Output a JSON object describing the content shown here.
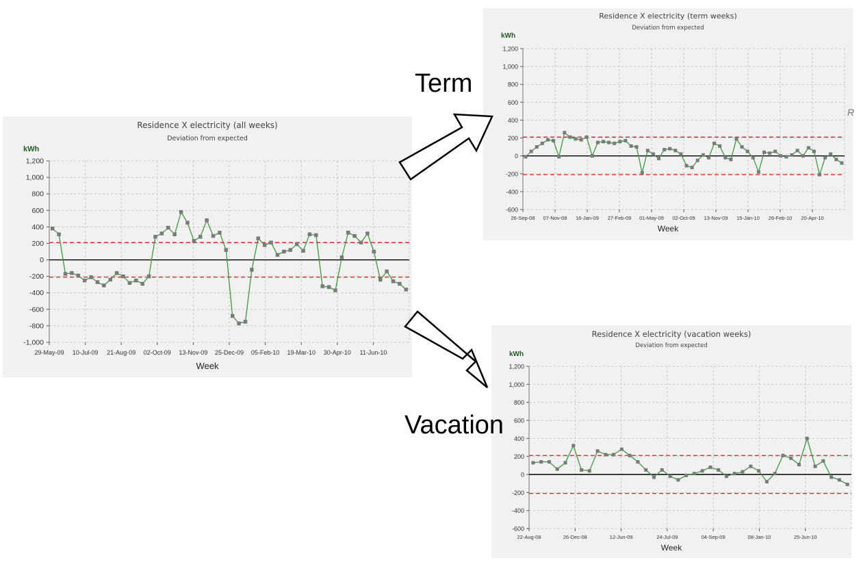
{
  "labels": {
    "term": "Term",
    "vacation": "Vacation",
    "edge_glyph": "R"
  },
  "colors": {
    "line": "#3a9a3a",
    "marker": "#7a7a7a",
    "limit": "#e03030",
    "zero": "#000000",
    "grid": "#c8c8c8",
    "unit": "#1f5b1f"
  },
  "chart_data": [
    {
      "id": "all",
      "type": "line",
      "title": "Residence X electricity (all weeks)",
      "subtitle": "Deviation from expected",
      "ylabel": "kWh",
      "xlabel": "Week",
      "ylim": [
        -1000,
        1200
      ],
      "yticks": [
        -1000,
        -800,
        -600,
        -400,
        -200,
        0,
        200,
        400,
        600,
        800,
        1000,
        1200
      ],
      "yticklabels": [
        "-1,000",
        "-800",
        "-600",
        "-400",
        "-200",
        "0",
        "200",
        "400",
        "600",
        "800",
        "1,000",
        "1,200"
      ],
      "xticklabels": [
        "29-May-09",
        "10-Jul-09",
        "21-Aug-09",
        "02-Oct-09",
        "13-Nov-09",
        "25-Dec-09",
        "05-Feb-10",
        "19-Mar-10",
        "30-Apr-10",
        "11-Jun-10"
      ],
      "upper_limit": 210,
      "lower_limit": -210,
      "grid": true,
      "values": [
        380,
        310,
        -170,
        -160,
        -190,
        -250,
        -210,
        -270,
        -310,
        -240,
        -160,
        -200,
        -280,
        -250,
        -290,
        -200,
        280,
        320,
        390,
        310,
        580,
        450,
        230,
        280,
        480,
        290,
        330,
        120,
        -680,
        -770,
        -750,
        -120,
        260,
        180,
        210,
        60,
        100,
        120,
        190,
        110,
        310,
        300,
        -320,
        -330,
        -370,
        30,
        330,
        290,
        210,
        320,
        100,
        -240,
        -140,
        -260,
        -290,
        -360
      ]
    },
    {
      "id": "term",
      "type": "line",
      "title": "Residence X electricity (term weeks)",
      "subtitle": "Deviation from expected",
      "ylabel": "kWh",
      "xlabel": "Week",
      "ylim": [
        -600,
        1200
      ],
      "yticks": [
        -600,
        -400,
        -200,
        0,
        200,
        400,
        600,
        800,
        1000,
        1200
      ],
      "yticklabels": [
        "-600",
        "-400",
        "-200",
        "0",
        "200",
        "400",
        "600",
        "800",
        "1,000",
        "1,200"
      ],
      "xticklabels": [
        "26-Sep-08",
        "07-Nov-08",
        "16-Jan-09",
        "27-Feb-09",
        "01-May-09",
        "02-Oct-09",
        "13-Nov-09",
        "15-Jan-10",
        "26-Feb-10",
        "20-Apr-10"
      ],
      "upper_limit": 210,
      "lower_limit": -210,
      "grid": true,
      "values": [
        -10,
        50,
        100,
        140,
        180,
        170,
        -10,
        260,
        210,
        190,
        180,
        210,
        0,
        150,
        160,
        150,
        140,
        160,
        170,
        110,
        100,
        -190,
        60,
        20,
        -30,
        70,
        80,
        60,
        20,
        -110,
        -130,
        -50,
        10,
        -20,
        140,
        110,
        -20,
        -40,
        190,
        100,
        50,
        -20,
        -180,
        40,
        30,
        50,
        0,
        -10,
        10,
        60,
        0,
        90,
        50,
        -210,
        -20,
        20,
        -40,
        -80
      ]
    },
    {
      "id": "vacation",
      "type": "line",
      "title": "Residence X electricity (vacation weeks)",
      "subtitle": "Deviation from expected",
      "ylabel": "kWh",
      "xlabel": "Week",
      "ylim": [
        -600,
        1200
      ],
      "yticks": [
        -600,
        -400,
        -200,
        0,
        200,
        400,
        600,
        800,
        1000,
        1200
      ],
      "yticklabels": [
        "-600",
        "-400",
        "-200",
        "0",
        "200",
        "400",
        "600",
        "800",
        "1,000",
        "1,200"
      ],
      "xticklabels": [
        "22-Aug-08",
        "26-Dec-08",
        "12-Jun-09",
        "24-Jul-09",
        "04-Sep-09",
        "08-Jan-10",
        "25-Jun-10"
      ],
      "upper_limit": 210,
      "lower_limit": -210,
      "grid": true,
      "values": [
        130,
        140,
        140,
        60,
        130,
        320,
        50,
        40,
        260,
        220,
        220,
        280,
        210,
        140,
        50,
        -30,
        50,
        -20,
        -60,
        -10,
        10,
        40,
        80,
        50,
        -20,
        10,
        30,
        90,
        40,
        -80,
        10,
        210,
        180,
        110,
        400,
        90,
        150,
        -30,
        -60,
        -110
      ]
    }
  ]
}
